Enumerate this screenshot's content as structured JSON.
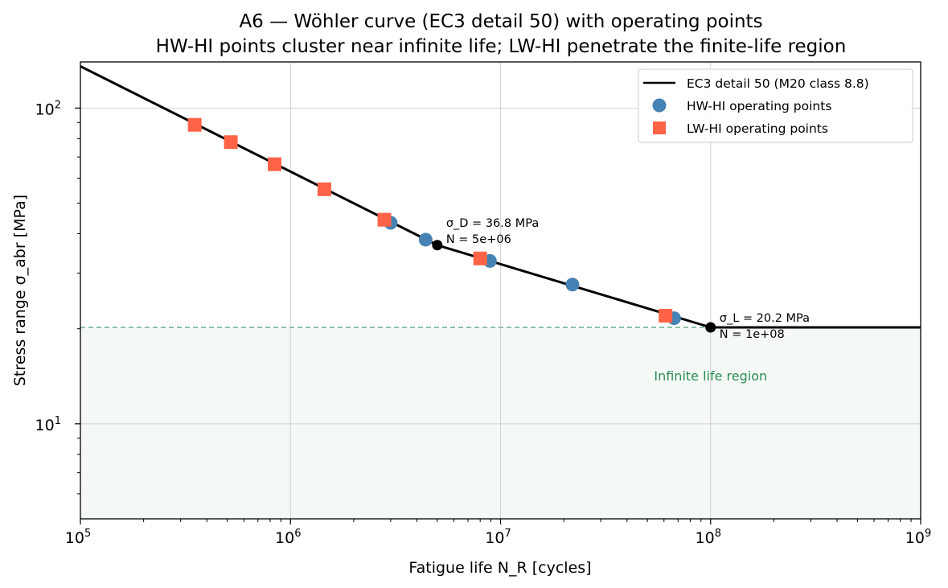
{
  "chart_data": {
    "type": "line",
    "title": "A6 — Wöhler curve (EC3 detail 50) with operating points",
    "subtitle": "HW-HI points cluster near infinite life; LW-HI penetrate the finite-life region",
    "xlabel": "Fatigue life N_R [cycles]",
    "ylabel": "Stress range σ_abr [MPa]",
    "xscale": "log",
    "yscale": "log",
    "xlim": [
      100000,
      1000000000
    ],
    "ylim": [
      5,
      140
    ],
    "grid": true,
    "legend_position": "top-right",
    "x_ticks": [
      {
        "value": 100000,
        "base": "10",
        "exp": "5"
      },
      {
        "value": 1000000,
        "base": "10",
        "exp": "6"
      },
      {
        "value": 10000000,
        "base": "10",
        "exp": "7"
      },
      {
        "value": 100000000,
        "base": "10",
        "exp": "8"
      },
      {
        "value": 1000000000,
        "base": "10",
        "exp": "9"
      }
    ],
    "y_ticks": [
      {
        "value": 10,
        "base": "10",
        "exp": "1"
      },
      {
        "value": 100,
        "base": "10",
        "exp": "2"
      }
    ],
    "series": [
      {
        "name": "EC3 detail 50 (M20 class 8.8)",
        "kind": "line",
        "color": "#000000",
        "x": [
          100000,
          5000000,
          100000000,
          1000000000
        ],
        "y": [
          135.6,
          36.8,
          20.2,
          20.2
        ]
      },
      {
        "name": "HW-HI operating points",
        "kind": "scatter",
        "marker": "circle",
        "color": "#4682b4",
        "x": [
          3000000,
          4400000,
          8900000,
          22000000,
          67000000
        ],
        "y": [
          43.3,
          38.3,
          32.8,
          27.6,
          21.6
        ]
      },
      {
        "name": "LW-HI operating points",
        "kind": "scatter",
        "marker": "square",
        "color": "#ff6347",
        "x": [
          350000,
          520000,
          840000,
          1450000,
          2800000,
          8000000,
          61000000
        ],
        "y": [
          88.5,
          78.0,
          66.4,
          55.3,
          44.3,
          33.4,
          22.0
        ]
      }
    ],
    "knee_points": [
      {
        "x": 5000000,
        "y": 36.8,
        "label_line1": "σ_D = 36.8 MPa",
        "label_line2": "N = 5e+06"
      },
      {
        "x": 100000000,
        "y": 20.2,
        "label_line1": "σ_L = 20.2 MPa",
        "label_line2": "N = 1e+08"
      }
    ],
    "threshold": {
      "y": 20.2,
      "color": "#2e8b57"
    },
    "region_label": {
      "text": "Infinite life region",
      "x": 100000000,
      "y": 14.2,
      "color": "#2e8b57"
    }
  }
}
